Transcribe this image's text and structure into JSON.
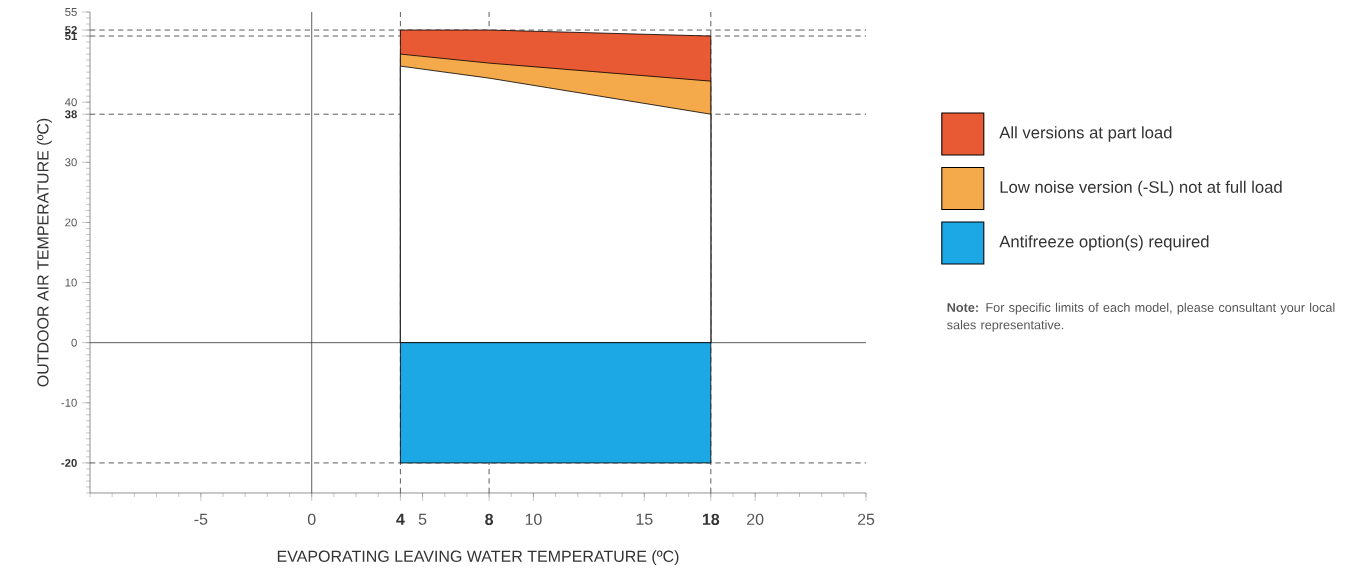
{
  "chart_data": {
    "type": "area",
    "xlabel": "EVAPORATING LEAVING WATER TEMPERATURE (ºC)",
    "ylabel": "OUTDOOR AIR TEMPERATURE (ºC)",
    "xlim": [
      -10,
      25
    ],
    "ylim": [
      -25,
      55
    ],
    "xticks": [
      -5,
      0,
      4,
      5,
      8,
      10,
      15,
      18,
      20,
      25
    ],
    "yticks": [
      -20,
      -10,
      0,
      10,
      20,
      30,
      38,
      40,
      51,
      52,
      55
    ],
    "series": [
      {
        "name": "All versions at part load",
        "color": "#e85a33",
        "x": [
          4,
          8,
          18
        ],
        "values": [
          52,
          52,
          51
        ]
      },
      {
        "name": "Low noise version (-SL) not at full load",
        "color": "#f4aa4b",
        "x": [
          4,
          8,
          18
        ],
        "values": [
          48,
          46.5,
          43.5
        ]
      },
      {
        "color": "#ffffff",
        "x": [
          4,
          8,
          18
        ],
        "values": [
          46,
          44,
          38
        ]
      },
      {
        "name": "Antifreeze option(s) required",
        "color": "#1ca8e4",
        "x": [
          4,
          18
        ],
        "values": [
          -20,
          -20
        ]
      }
    ],
    "ref_lines": [
      {
        "axis": "y",
        "value": 52,
        "line_style": "dashed"
      },
      {
        "axis": "y",
        "value": 51,
        "line_style": "dashed"
      },
      {
        "axis": "y",
        "value": 38,
        "line_style": "dashed"
      },
      {
        "axis": "y",
        "value": -20,
        "line_style": "dashed"
      },
      {
        "axis": "x",
        "value": 4,
        "line_style": "dashed"
      },
      {
        "axis": "x",
        "value": 8,
        "line_style": "dashed"
      },
      {
        "axis": "x",
        "value": 18,
        "line_style": "dashed"
      },
      {
        "axis": "x",
        "value": 0,
        "line_style": "solid"
      },
      {
        "axis": "y",
        "value": 0,
        "line_style": "solid"
      }
    ],
    "legend": "right",
    "annotations": [
      "**Note:** For specific limits of each model, please consultant your local sales representative."
    ]
  }
}
